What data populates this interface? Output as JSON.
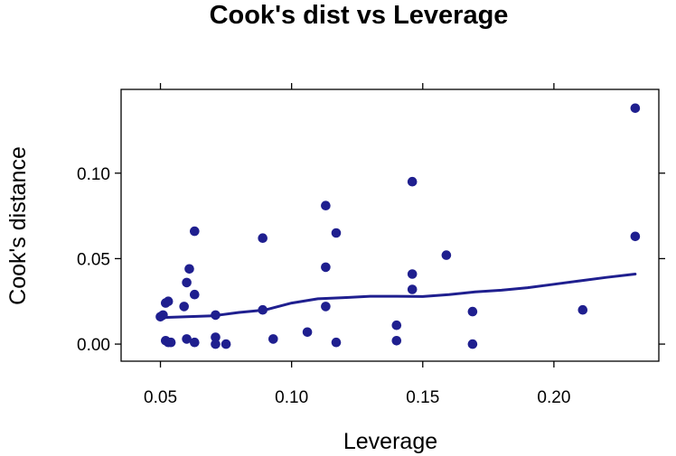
{
  "chart_data": {
    "type": "scatter",
    "title": "Cook's dist vs Leverage",
    "xlabel": "Leverage",
    "ylabel": "Cook's distance",
    "xlim": [
      0.035,
      0.24
    ],
    "ylim": [
      -0.01,
      0.149
    ],
    "x_ticks": [
      0.05,
      0.1,
      0.15,
      0.2
    ],
    "x_tick_labels": [
      "0.05",
      "0.10",
      "0.15",
      "0.20"
    ],
    "y_ticks": [
      0.0,
      0.05,
      0.1
    ],
    "y_tick_labels": [
      "0.00",
      "0.05",
      "0.10"
    ],
    "grid": false,
    "point_color": "#1f1f8f",
    "line_color": "#1f1f8f",
    "points": [
      {
        "x": 0.05,
        "y": 0.016
      },
      {
        "x": 0.051,
        "y": 0.017
      },
      {
        "x": 0.052,
        "y": 0.024
      },
      {
        "x": 0.053,
        "y": 0.025
      },
      {
        "x": 0.052,
        "y": 0.002
      },
      {
        "x": 0.053,
        "y": 0.001
      },
      {
        "x": 0.054,
        "y": 0.001
      },
      {
        "x": 0.059,
        "y": 0.022
      },
      {
        "x": 0.06,
        "y": 0.036
      },
      {
        "x": 0.061,
        "y": 0.044
      },
      {
        "x": 0.06,
        "y": 0.003
      },
      {
        "x": 0.063,
        "y": 0.029
      },
      {
        "x": 0.063,
        "y": 0.066
      },
      {
        "x": 0.063,
        "y": 0.001
      },
      {
        "x": 0.071,
        "y": 0.017
      },
      {
        "x": 0.071,
        "y": 0.004
      },
      {
        "x": 0.071,
        "y": 0.0
      },
      {
        "x": 0.075,
        "y": 0.0
      },
      {
        "x": 0.089,
        "y": 0.062
      },
      {
        "x": 0.089,
        "y": 0.02
      },
      {
        "x": 0.093,
        "y": 0.003
      },
      {
        "x": 0.106,
        "y": 0.007
      },
      {
        "x": 0.113,
        "y": 0.081
      },
      {
        "x": 0.113,
        "y": 0.045
      },
      {
        "x": 0.113,
        "y": 0.022
      },
      {
        "x": 0.117,
        "y": 0.065
      },
      {
        "x": 0.117,
        "y": 0.001
      },
      {
        "x": 0.14,
        "y": 0.011
      },
      {
        "x": 0.14,
        "y": 0.002
      },
      {
        "x": 0.146,
        "y": 0.095
      },
      {
        "x": 0.146,
        "y": 0.041
      },
      {
        "x": 0.146,
        "y": 0.032
      },
      {
        "x": 0.159,
        "y": 0.052
      },
      {
        "x": 0.169,
        "y": 0.019
      },
      {
        "x": 0.169,
        "y": 0.0
      },
      {
        "x": 0.211,
        "y": 0.02
      },
      {
        "x": 0.231,
        "y": 0.138
      },
      {
        "x": 0.231,
        "y": 0.063
      }
    ],
    "smooth_line": [
      {
        "x": 0.05,
        "y": 0.0155
      },
      {
        "x": 0.06,
        "y": 0.016
      },
      {
        "x": 0.07,
        "y": 0.0165
      },
      {
        "x": 0.08,
        "y": 0.0185
      },
      {
        "x": 0.09,
        "y": 0.02
      },
      {
        "x": 0.1,
        "y": 0.024
      },
      {
        "x": 0.11,
        "y": 0.0265
      },
      {
        "x": 0.12,
        "y": 0.0272
      },
      {
        "x": 0.13,
        "y": 0.028
      },
      {
        "x": 0.14,
        "y": 0.028
      },
      {
        "x": 0.15,
        "y": 0.0278
      },
      {
        "x": 0.16,
        "y": 0.029
      },
      {
        "x": 0.17,
        "y": 0.0305
      },
      {
        "x": 0.18,
        "y": 0.0315
      },
      {
        "x": 0.19,
        "y": 0.033
      },
      {
        "x": 0.2,
        "y": 0.035
      },
      {
        "x": 0.21,
        "y": 0.037
      },
      {
        "x": 0.22,
        "y": 0.039
      },
      {
        "x": 0.231,
        "y": 0.041
      }
    ]
  }
}
